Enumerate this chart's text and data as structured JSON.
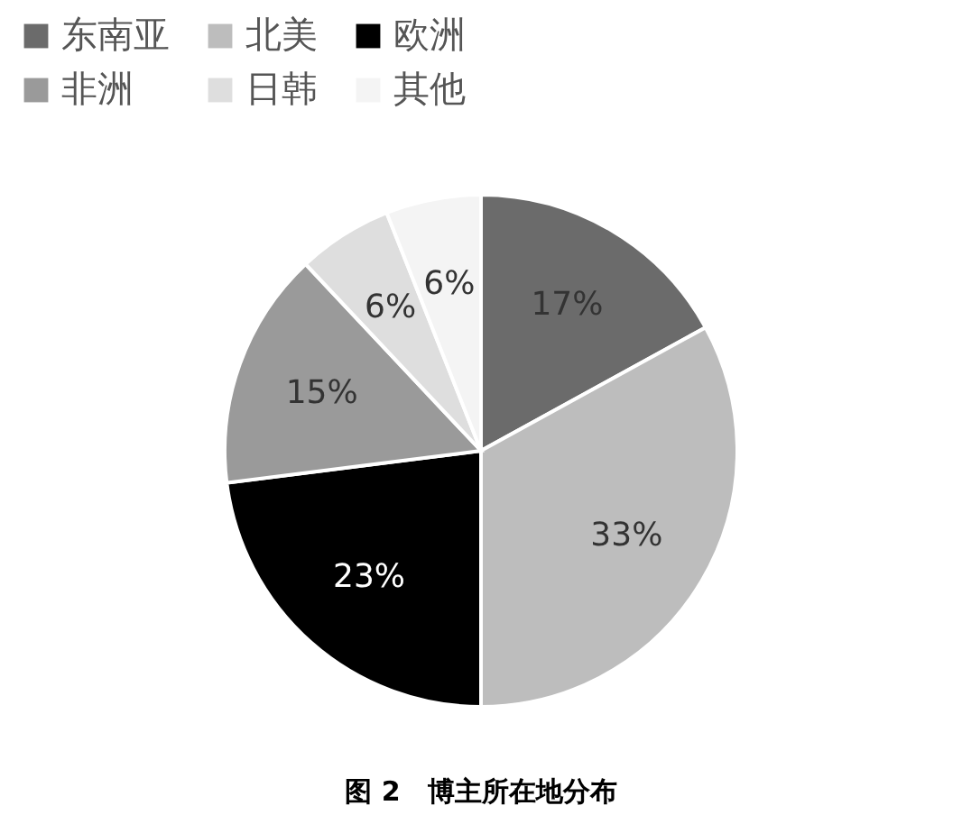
{
  "chart_data": {
    "type": "pie",
    "categories": [
      "东南亚",
      "北美",
      "欧洲",
      "非洲",
      "日韩",
      "其他"
    ],
    "values": [
      17,
      33,
      23,
      15,
      6,
      6
    ],
    "colors": [
      "#6b6b6b",
      "#bdbdbd",
      "#000000",
      "#9a9a9a",
      "#dedede",
      "#f4f4f4"
    ],
    "value_labels": [
      "17%",
      "33%",
      "23%",
      "15%",
      "6%",
      "6%"
    ],
    "legend": "top",
    "annotations": [
      "图 2　博主所在地分布"
    ]
  }
}
